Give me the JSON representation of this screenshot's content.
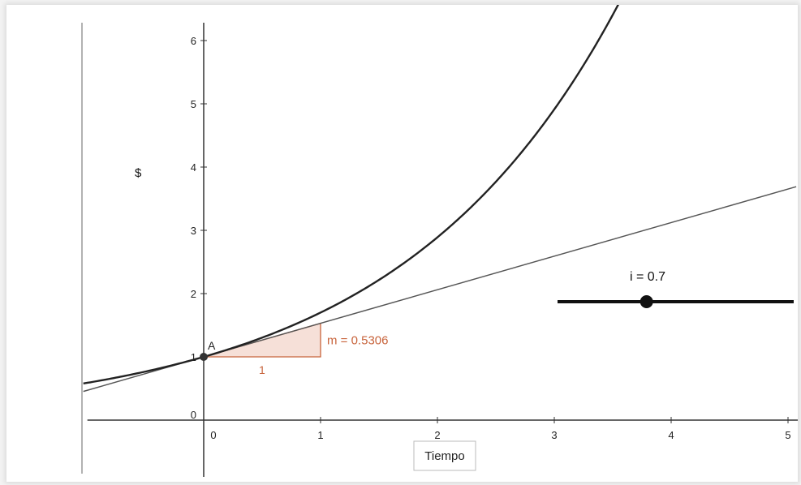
{
  "chart_data": {
    "type": "line",
    "title": "",
    "ylabel": "$",
    "xlabel": "Tiempo",
    "xlim": [
      -1.03,
      5.07
    ],
    "ylim": [
      -0.32,
      6.3
    ],
    "x_ticks": [
      0,
      1,
      2,
      3,
      4,
      5
    ],
    "y_ticks": [
      0,
      1,
      2,
      3,
      4,
      5,
      6
    ],
    "grid": false,
    "series": [
      {
        "function": "(1+i)^x",
        "style": "curve",
        "color": "#222222"
      },
      {
        "function": "1 + m*x",
        "style": "tangent-line",
        "color": "#555555"
      }
    ],
    "point": {
      "label": "A",
      "x": 0,
      "y": 1,
      "color": "#333333"
    },
    "slope_triangle": {
      "base_label": "1",
      "slope_label": "m = 0.5306",
      "slope": 0.5306,
      "color": "#c8643c",
      "fill": "#f6e0d8"
    },
    "slider": {
      "label": "i = 0.7",
      "value": 0.7,
      "min": 0,
      "max": 1,
      "color": "#111111"
    }
  }
}
